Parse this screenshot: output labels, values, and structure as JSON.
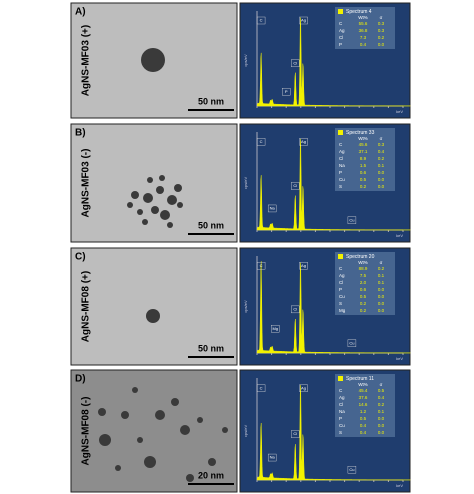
{
  "panels": [
    {
      "letter": "A)",
      "sample": "AgNS-MF03 (+)",
      "scale": "50 nm",
      "spectrum": "Spectrum 4",
      "header": [
        "Wt%",
        "σ"
      ],
      "rows": [
        [
          "C",
          "55.6",
          "0.3"
        ],
        [
          "Ag",
          "36.8",
          "0.3"
        ],
        [
          "Cl",
          "7.3",
          "0.2"
        ],
        [
          "P",
          "0.4",
          "0.0"
        ]
      ],
      "peaks": [
        "C",
        "Ag",
        "Cl",
        "P"
      ]
    },
    {
      "letter": "B)",
      "sample": "AgNS-MF03 (-)",
      "scale": "50 nm",
      "spectrum": "Spectrum 33",
      "header": [
        "Wt%",
        "σ"
      ],
      "rows": [
        [
          "C",
          "45.6",
          "0.3"
        ],
        [
          "Ag",
          "37.1",
          "0.4"
        ],
        [
          "Cl",
          "8.9",
          "0.2"
        ],
        [
          "Na",
          "1.5",
          "0.1"
        ],
        [
          "P",
          "0.6",
          "0.0"
        ],
        [
          "Cu",
          "0.5",
          "0.0"
        ],
        [
          "S",
          "0.2",
          "0.0"
        ]
      ],
      "peaks": [
        "C",
        "Ag",
        "Cl",
        "Na",
        "Cu"
      ]
    },
    {
      "letter": "C)",
      "sample": "AgNS-MF08 (+)",
      "scale": "50 nm",
      "spectrum": "Spectrum 20",
      "header": [
        "Wt%",
        "σ"
      ],
      "rows": [
        [
          "C",
          "88.9",
          "0.2"
        ],
        [
          "Ag",
          "7.5",
          "0.1"
        ],
        [
          "Cl",
          "2.0",
          "0.1"
        ],
        [
          "P",
          "0.6",
          "0.0"
        ],
        [
          "Cu",
          "0.5",
          "0.0"
        ],
        [
          "S",
          "0.2",
          "0.0"
        ],
        [
          "Mg",
          "0.2",
          "0.0"
        ]
      ],
      "peaks": [
        "C",
        "Ag",
        "Cl",
        "Mg",
        "Cu"
      ]
    },
    {
      "letter": "D)",
      "sample": "AgNS-MF08 (-)",
      "scale": "20 nm",
      "spectrum": "Spectrum 11",
      "header": [
        "Wt%",
        "σ"
      ],
      "rows": [
        [
          "C",
          "45.4",
          "0.5"
        ],
        [
          "Ag",
          "37.6",
          "0.4"
        ],
        [
          "Cl",
          "14.6",
          "0.2"
        ],
        [
          "Na",
          "1.2",
          "0.1"
        ],
        [
          "P",
          "0.5",
          "0.0"
        ],
        [
          "Cu",
          "0.4",
          "0.0"
        ],
        [
          "S",
          "0.4",
          "0.0"
        ]
      ],
      "peaks": [
        "C",
        "Ag",
        "Cl",
        "Na",
        "Cu"
      ]
    }
  ],
  "axis_y": "cps/eV",
  "axis_x": "keV"
}
